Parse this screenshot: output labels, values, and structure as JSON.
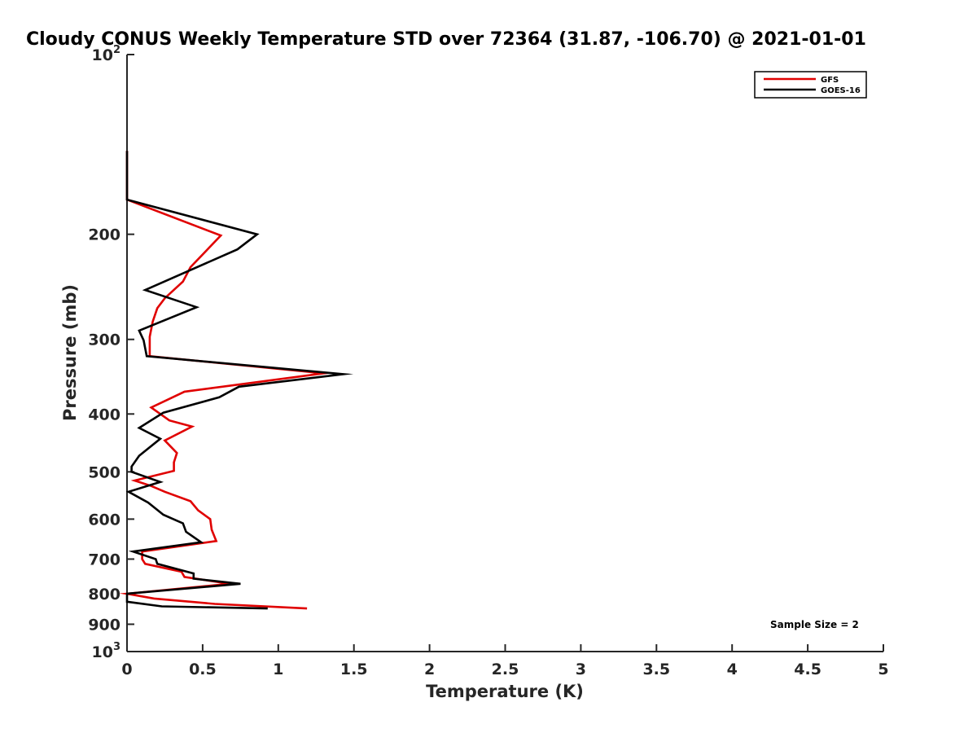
{
  "chart_data": {
    "type": "line",
    "title": "Cloudy CONUS Weekly Temperature STD over 72364 (31.87, -106.70) @ 2021-01-01",
    "xlabel": "Temperature (K)",
    "ylabel": "Pressure (mb)",
    "xlim": [
      0,
      5
    ],
    "ylim": [
      100,
      1000
    ],
    "y_scale": "log",
    "y_reversed": true,
    "x_ticks": [
      0,
      0.5,
      1,
      1.5,
      2,
      2.5,
      3,
      3.5,
      4,
      4.5,
      5
    ],
    "x_tick_labels": [
      "0",
      "0.5",
      "1",
      "1.5",
      "2",
      "2.5",
      "3",
      "3.5",
      "4",
      "4.5",
      "5"
    ],
    "y_ticks": [
      100,
      200,
      300,
      400,
      500,
      600,
      700,
      800,
      900,
      1000
    ],
    "y_tick_labels": [
      {
        "base": "10",
        "exp": "2"
      },
      {
        "base": "200",
        "exp": ""
      },
      {
        "base": "300",
        "exp": ""
      },
      {
        "base": "400",
        "exp": ""
      },
      {
        "base": "500",
        "exp": ""
      },
      {
        "base": "600",
        "exp": ""
      },
      {
        "base": "700",
        "exp": ""
      },
      {
        "base": "800",
        "exp": ""
      },
      {
        "base": "900",
        "exp": ""
      },
      {
        "base": "10",
        "exp": "3"
      }
    ],
    "grid": false,
    "legend_position": "top-right",
    "series": [
      {
        "name": "GFS",
        "color": "#e00000",
        "points": [
          [
            0,
            145
          ],
          [
            0,
            175
          ],
          [
            0.62,
            201
          ],
          [
            0.42,
            227
          ],
          [
            0.37,
            240
          ],
          [
            0.25,
            256
          ],
          [
            0.2,
            266
          ],
          [
            0.17,
            280
          ],
          [
            0.15,
            297
          ],
          [
            0.15,
            320
          ],
          [
            1.3,
            342
          ],
          [
            0.38,
            367
          ],
          [
            0.16,
            390
          ],
          [
            0.28,
            410
          ],
          [
            0.43,
            420
          ],
          [
            0.25,
            443
          ],
          [
            0.33,
            465
          ],
          [
            0.31,
            482
          ],
          [
            0.31,
            498
          ],
          [
            0.05,
            517
          ],
          [
            0.16,
            528
          ],
          [
            0.25,
            540
          ],
          [
            0.42,
            560
          ],
          [
            0.47,
            580
          ],
          [
            0.55,
            600
          ],
          [
            0.56,
            625
          ],
          [
            0.59,
            653
          ],
          [
            0.1,
            680
          ],
          [
            0.1,
            700
          ],
          [
            0.12,
            713
          ],
          [
            0.36,
            735
          ],
          [
            0.38,
            750
          ],
          [
            0.68,
            770
          ],
          [
            0,
            800
          ],
          [
            0.18,
            815
          ],
          [
            0.58,
            832
          ],
          [
            1.19,
            847
          ]
        ]
      },
      {
        "name": "GOES-16",
        "color": "#000000",
        "points": [
          [
            0,
            145
          ],
          [
            0,
            175
          ],
          [
            0.86,
            200
          ],
          [
            0.73,
            212
          ],
          [
            0.12,
            248
          ],
          [
            0.46,
            265
          ],
          [
            0.08,
            290
          ],
          [
            0.11,
            301
          ],
          [
            0.13,
            320
          ],
          [
            1.43,
            343
          ],
          [
            0.74,
            360
          ],
          [
            0.61,
            375
          ],
          [
            0.24,
            398
          ],
          [
            0.08,
            422
          ],
          [
            0.22,
            440
          ],
          [
            0.08,
            470
          ],
          [
            0.03,
            490
          ],
          [
            0.03,
            500
          ],
          [
            0.22,
            520
          ],
          [
            0.01,
            540
          ],
          [
            0.14,
            563
          ],
          [
            0.24,
            590
          ],
          [
            0.37,
            610
          ],
          [
            0.39,
            630
          ],
          [
            0.49,
            656
          ],
          [
            0.04,
            680
          ],
          [
            0.19,
            700
          ],
          [
            0.2,
            713
          ],
          [
            0.44,
            740
          ],
          [
            0.44,
            755
          ],
          [
            0.75,
            770
          ],
          [
            0,
            800
          ],
          [
            0,
            825
          ],
          [
            0.23,
            840
          ],
          [
            0.93,
            847
          ]
        ]
      }
    ],
    "annotation": "Sample Size = 2"
  }
}
